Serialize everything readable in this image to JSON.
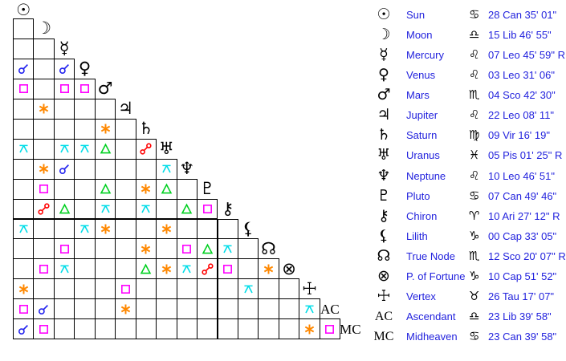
{
  "colors": {
    "text_blue": "#2222dd",
    "glyph_black": "#000000",
    "grid_line": "#000000",
    "background": "#ffffff"
  },
  "aspect_types": {
    "conjunction": {
      "label": "conjunction",
      "color": "#2222ee"
    },
    "sextile": {
      "label": "sextile",
      "color": "#ff8800"
    },
    "square": {
      "label": "square",
      "color": "#ff00ff"
    },
    "trine": {
      "label": "trine",
      "color": "#00d020"
    },
    "quincunx": {
      "label": "quincunx",
      "color": "#00dde8"
    },
    "opposition": {
      "label": "opposition",
      "color": "#ff0000"
    }
  },
  "planets": [
    {
      "name": "Sun",
      "glyph": "☉",
      "sign_glyph": "♋",
      "position": "28 Can 35' 01\""
    },
    {
      "name": "Moon",
      "glyph": "☽",
      "sign_glyph": "♎",
      "position": "15 Lib 46' 55\""
    },
    {
      "name": "Mercury",
      "glyph": "☿",
      "sign_glyph": "♌",
      "position": "07 Leo 45' 59\" R"
    },
    {
      "name": "Venus",
      "glyph": "♀",
      "sign_glyph": "♌",
      "position": "03 Leo 31' 06\""
    },
    {
      "name": "Mars",
      "glyph": "♂",
      "sign_glyph": "♏",
      "position": "04 Sco 42' 30\""
    },
    {
      "name": "Jupiter",
      "glyph": "♃",
      "sign_glyph": "♌",
      "position": "22 Leo 08' 11\""
    },
    {
      "name": "Saturn",
      "glyph": "♄",
      "sign_glyph": "♍",
      "position": "09 Vir 16' 19\""
    },
    {
      "name": "Uranus",
      "glyph": "♅",
      "sign_glyph": "♓",
      "position": "05 Pis 01' 25\" R"
    },
    {
      "name": "Neptune",
      "glyph": "♆",
      "sign_glyph": "♌",
      "position": "10 Leo 46' 51\""
    },
    {
      "name": "Pluto",
      "glyph": "♇",
      "sign_glyph": "♋",
      "position": "07 Can 49' 46\""
    },
    {
      "name": "Chiron",
      "glyph": "⚷",
      "sign_glyph": "♈",
      "position": "10 Ari 27' 12\" R"
    },
    {
      "name": "Lilith",
      "glyph": "⚸",
      "sign_glyph": "♑",
      "position": "00 Cap 33' 05\""
    },
    {
      "name": "True Node",
      "glyph": "☊",
      "sign_glyph": "♏",
      "position": "12 Sco 20' 07\" R"
    },
    {
      "name": "P. of Fortune",
      "glyph": "⊗",
      "sign_glyph": "♑",
      "position": "10 Cap 51' 52\""
    },
    {
      "name": "Vertex",
      "glyph": "☩",
      "sign_glyph": "♉",
      "position": "26 Tau 17' 07\""
    },
    {
      "name": "Ascendant",
      "glyph": "AC",
      "text_glyph": true,
      "sign_glyph": "♎",
      "position": "23 Lib 39' 58\""
    },
    {
      "name": "Midheaven",
      "glyph": "MC",
      "text_glyph": true,
      "sign_glyph": "♋",
      "position": "23 Can 39' 58\""
    }
  ],
  "aspects": [
    {
      "between": [
        "Venus",
        "Sun"
      ],
      "type": "conjunction"
    },
    {
      "between": [
        "Venus",
        "Mercury"
      ],
      "type": "conjunction"
    },
    {
      "between": [
        "Mars",
        "Sun"
      ],
      "type": "square"
    },
    {
      "between": [
        "Mars",
        "Mercury"
      ],
      "type": "square"
    },
    {
      "between": [
        "Mars",
        "Venus"
      ],
      "type": "square"
    },
    {
      "between": [
        "Jupiter",
        "Moon"
      ],
      "type": "sextile"
    },
    {
      "between": [
        "Saturn",
        "Mars"
      ],
      "type": "sextile"
    },
    {
      "between": [
        "Uranus",
        "Sun"
      ],
      "type": "quincunx"
    },
    {
      "between": [
        "Uranus",
        "Mercury"
      ],
      "type": "quincunx"
    },
    {
      "between": [
        "Uranus",
        "Venus"
      ],
      "type": "quincunx"
    },
    {
      "between": [
        "Uranus",
        "Mars"
      ],
      "type": "trine"
    },
    {
      "between": [
        "Uranus",
        "Saturn"
      ],
      "type": "opposition"
    },
    {
      "between": [
        "Neptune",
        "Moon"
      ],
      "type": "sextile"
    },
    {
      "between": [
        "Neptune",
        "Mercury"
      ],
      "type": "conjunction"
    },
    {
      "between": [
        "Neptune",
        "Uranus"
      ],
      "type": "quincunx"
    },
    {
      "between": [
        "Pluto",
        "Moon"
      ],
      "type": "square"
    },
    {
      "between": [
        "Pluto",
        "Mars"
      ],
      "type": "trine"
    },
    {
      "between": [
        "Pluto",
        "Saturn"
      ],
      "type": "sextile"
    },
    {
      "between": [
        "Pluto",
        "Uranus"
      ],
      "type": "trine"
    },
    {
      "between": [
        "Chiron",
        "Moon"
      ],
      "type": "opposition"
    },
    {
      "between": [
        "Chiron",
        "Mercury"
      ],
      "type": "trine"
    },
    {
      "between": [
        "Chiron",
        "Mars"
      ],
      "type": "quincunx"
    },
    {
      "between": [
        "Chiron",
        "Saturn"
      ],
      "type": "quincunx"
    },
    {
      "between": [
        "Chiron",
        "Neptune"
      ],
      "type": "trine"
    },
    {
      "between": [
        "Chiron",
        "Pluto"
      ],
      "type": "square"
    },
    {
      "between": [
        "Lilith",
        "Sun"
      ],
      "type": "quincunx"
    },
    {
      "between": [
        "Lilith",
        "Venus"
      ],
      "type": "quincunx"
    },
    {
      "between": [
        "Lilith",
        "Mars"
      ],
      "type": "sextile"
    },
    {
      "between": [
        "Lilith",
        "Uranus"
      ],
      "type": "sextile"
    },
    {
      "between": [
        "True Node",
        "Mercury"
      ],
      "type": "square"
    },
    {
      "between": [
        "True Node",
        "Saturn"
      ],
      "type": "sextile"
    },
    {
      "between": [
        "True Node",
        "Neptune"
      ],
      "type": "square"
    },
    {
      "between": [
        "True Node",
        "Pluto"
      ],
      "type": "trine"
    },
    {
      "between": [
        "True Node",
        "Chiron"
      ],
      "type": "quincunx"
    },
    {
      "between": [
        "P. of Fortune",
        "Moon"
      ],
      "type": "square"
    },
    {
      "between": [
        "P. of Fortune",
        "Mercury"
      ],
      "type": "quincunx"
    },
    {
      "between": [
        "P. of Fortune",
        "Saturn"
      ],
      "type": "trine"
    },
    {
      "between": [
        "P. of Fortune",
        "Uranus"
      ],
      "type": "sextile"
    },
    {
      "between": [
        "P. of Fortune",
        "Neptune"
      ],
      "type": "quincunx"
    },
    {
      "between": [
        "P. of Fortune",
        "Pluto"
      ],
      "type": "opposition"
    },
    {
      "between": [
        "P. of Fortune",
        "Chiron"
      ],
      "type": "square"
    },
    {
      "between": [
        "P. of Fortune",
        "True Node"
      ],
      "type": "sextile"
    },
    {
      "between": [
        "Vertex",
        "Sun"
      ],
      "type": "sextile"
    },
    {
      "between": [
        "Vertex",
        "Jupiter"
      ],
      "type": "square"
    },
    {
      "between": [
        "Vertex",
        "Lilith"
      ],
      "type": "quincunx"
    },
    {
      "between": [
        "Ascendant",
        "Sun"
      ],
      "type": "square"
    },
    {
      "between": [
        "Ascendant",
        "Moon"
      ],
      "type": "conjunction"
    },
    {
      "between": [
        "Ascendant",
        "Jupiter"
      ],
      "type": "sextile"
    },
    {
      "between": [
        "Ascendant",
        "Vertex"
      ],
      "type": "quincunx"
    },
    {
      "between": [
        "Midheaven",
        "Sun"
      ],
      "type": "conjunction"
    },
    {
      "between": [
        "Midheaven",
        "Moon"
      ],
      "type": "square"
    },
    {
      "between": [
        "Midheaven",
        "Vertex"
      ],
      "type": "sextile"
    },
    {
      "between": [
        "Midheaven",
        "Ascendant"
      ],
      "type": "square"
    }
  ],
  "chart_data": {
    "type": "table",
    "title": "Natal aspectarian with planet positions",
    "matrix_rows": [
      "Sun",
      "Moon",
      "Mercury",
      "Venus",
      "Mars",
      "Jupiter",
      "Saturn",
      "Uranus",
      "Neptune",
      "Pluto",
      "Chiron",
      "Lilith",
      "True Node",
      "P. of Fortune",
      "Vertex",
      "Ascendant",
      "Midheaven"
    ],
    "positions": {
      "Sun": "28 Can 35' 01\"",
      "Moon": "15 Lib 46' 55\"",
      "Mercury": "07 Leo 45' 59\" R",
      "Venus": "03 Leo 31' 06\"",
      "Mars": "04 Sco 42' 30\"",
      "Jupiter": "22 Leo 08' 11\"",
      "Saturn": "09 Vir 16' 19\"",
      "Uranus": "05 Pis 01' 25\" R",
      "Neptune": "10 Leo 46' 51\"",
      "Pluto": "07 Can 49' 46\"",
      "Chiron": "10 Ari 27' 12\" R",
      "Lilith": "00 Cap 33' 05\"",
      "True Node": "12 Sco 20' 07\" R",
      "P. of Fortune": "10 Cap 51' 52\"",
      "Vertex": "26 Tau 17' 07\"",
      "Ascendant": "23 Lib 39' 58\"",
      "Midheaven": "23 Can 39' 58\""
    },
    "legend_position": "right"
  }
}
